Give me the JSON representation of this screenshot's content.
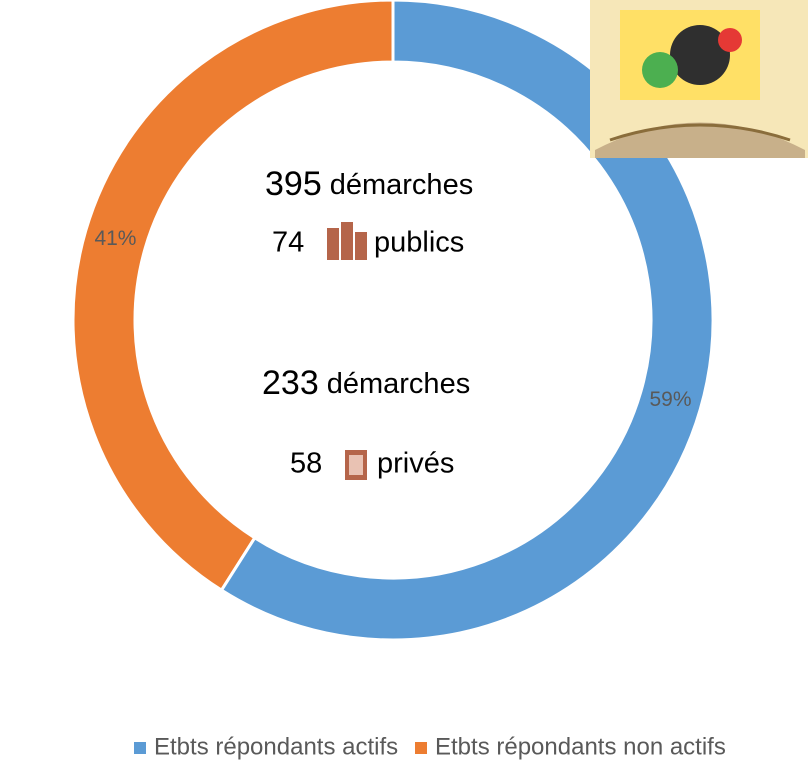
{
  "chart_data": {
    "type": "donut",
    "categories": [
      "Etbts répondants actifs",
      "Etbts répondants non actifs"
    ],
    "values": [
      59,
      41
    ],
    "value_labels": [
      "59%",
      "41%"
    ],
    "colors": [
      "#5b9bd5",
      "#ed7d31"
    ],
    "legend": "bottom",
    "annotations": [
      {
        "number": "395",
        "text": "démarches"
      },
      {
        "number": "74",
        "text": "publics"
      },
      {
        "number": "233",
        "text": "démarches"
      },
      {
        "number": "58",
        "text": "privés"
      }
    ]
  }
}
